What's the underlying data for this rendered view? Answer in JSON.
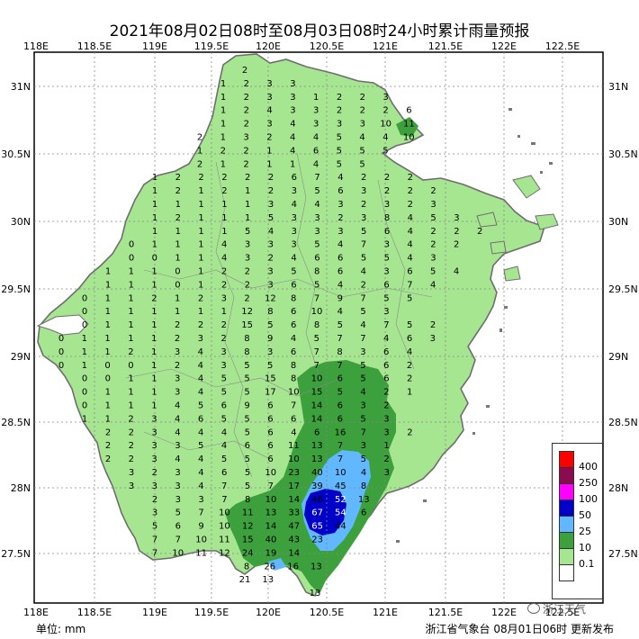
{
  "title": "2021年08月02日08时至08月03日08时24小时累计雨量预报",
  "x_ticks": [
    "118E",
    "118.5E",
    "119E",
    "119.5E",
    "120E",
    "120.5E",
    "121E",
    "121.5E",
    "122E",
    "122.5E"
  ],
  "y_ticks": [
    "31N",
    "30.5N",
    "30N",
    "29.5N",
    "29N",
    "28.5N",
    "28N",
    "27.5N"
  ],
  "unit_label": "单位: mm",
  "footer_text": "浙江省气象台 08月01日06时 更新发布",
  "watermark": "浙江天气",
  "legend": [
    {
      "label": "400",
      "color": "#ff0000"
    },
    {
      "label": "250",
      "color": "#8b0a50"
    },
    {
      "label": "100",
      "color": "#ff00ff"
    },
    {
      "label": "50",
      "color": "#0000c8"
    },
    {
      "label": "25",
      "color": "#61b8ff"
    },
    {
      "label": "10",
      "color": "#3ca03c"
    },
    {
      "label": "0.1",
      "color": "#a6e690"
    },
    {
      "label": "",
      "color": "#ffffff"
    }
  ],
  "colors": {
    "land": "#a6e690",
    "water": "#ffffff",
    "border": "#6e6e6e",
    "grid": "#888888"
  },
  "station_values": [
    [
      "2"
    ],
    [
      "1",
      "2",
      "3",
      "3"
    ],
    [
      "1",
      "2",
      "3",
      "3",
      "1",
      "2",
      "2",
      "3"
    ],
    [
      "1",
      "2",
      "4",
      "3",
      "3",
      "2",
      "2",
      "2",
      "6"
    ],
    [
      "1",
      "2",
      "3",
      "4",
      "3",
      "3",
      "3",
      "10",
      "11"
    ],
    [
      "2",
      "1",
      "3",
      "2",
      "4",
      "4",
      "5",
      "4",
      "4",
      "10"
    ],
    [
      "1",
      "2",
      "2",
      "1",
      "4",
      "6",
      "5",
      "5",
      "5"
    ],
    [
      "2",
      "1",
      "2",
      "1",
      "1",
      "4",
      "5",
      "5"
    ],
    [
      "1",
      "2",
      "2",
      "2",
      "2",
      "2",
      "6",
      "7",
      "4",
      "2",
      "2",
      "2"
    ],
    [
      "1",
      "2",
      "1",
      "2",
      "1",
      "2",
      "3",
      "5",
      "6",
      "3",
      "2",
      "2",
      "2"
    ],
    [
      "1",
      "1",
      "1",
      "1",
      "1",
      "3",
      "4",
      "4",
      "3",
      "2",
      "3",
      "2",
      "3"
    ],
    [
      "1",
      "2",
      "1",
      "1",
      "1",
      "5",
      "3",
      "3",
      "2",
      "3",
      "8",
      "4",
      "5",
      "3"
    ],
    [
      "1",
      "1",
      "1",
      "1",
      "5",
      "4",
      "3",
      "3",
      "3",
      "5",
      "6",
      "4",
      "2",
      "2",
      "2"
    ],
    [
      "0",
      "1",
      "1",
      "1",
      "4",
      "3",
      "3",
      "3",
      "5",
      "4",
      "7",
      "3",
      "4",
      "2",
      "2"
    ],
    [
      "0",
      "0",
      "1",
      "1",
      "4",
      "3",
      "2",
      "4",
      "6",
      "6",
      "5",
      "5",
      "4",
      "3"
    ],
    [
      "1",
      "1",
      "1",
      "0",
      "1",
      "2",
      "2",
      "3",
      "5",
      "8",
      "6",
      "4",
      "3",
      "6",
      "5",
      "4"
    ],
    [
      "1",
      "1",
      "1",
      "0",
      "1",
      "2",
      "2",
      "3",
      "6",
      "5",
      "4",
      "2",
      "6",
      "7",
      "4"
    ],
    [
      "0",
      "1",
      "1",
      "2",
      "1",
      "2",
      "3",
      "2",
      "12",
      "8",
      "7",
      "9",
      "7",
      "5",
      "5"
    ],
    [
      "0",
      "1",
      "1",
      "1",
      "1",
      "1",
      "1",
      "12",
      "8",
      "6",
      "10",
      "4",
      "5",
      "3"
    ],
    [
      "0",
      "1",
      "1",
      "1",
      "2",
      "2",
      "2",
      "15",
      "5",
      "6",
      "8",
      "5",
      "4",
      "7",
      "5",
      "2"
    ],
    [
      "0",
      "1",
      "1",
      "1",
      "1",
      "2",
      "3",
      "2",
      "8",
      "9",
      "4",
      "5",
      "7",
      "7",
      "4",
      "6",
      "3"
    ],
    [
      "0",
      "1",
      "1",
      "2",
      "1",
      "3",
      "4",
      "3",
      "8",
      "3",
      "6",
      "7",
      "8",
      "3",
      "6",
      "4"
    ],
    [
      "0",
      "1",
      "0",
      "0",
      "1",
      "2",
      "4",
      "3",
      "5",
      "5",
      "8",
      "7",
      "7",
      "5",
      "6",
      "2"
    ],
    [
      "0",
      "0",
      "1",
      "1",
      "3",
      "4",
      "5",
      "5",
      "15",
      "8",
      "10",
      "6",
      "5",
      "6",
      "2"
    ],
    [
      "0",
      "1",
      "1",
      "1",
      "3",
      "4",
      "5",
      "5",
      "17",
      "10",
      "15",
      "5",
      "4",
      "2",
      "1"
    ],
    [
      "0",
      "1",
      "1",
      "1",
      "4",
      "5",
      "6",
      "9",
      "6",
      "7",
      "14",
      "6",
      "3",
      "2"
    ],
    [
      "1",
      "1",
      "2",
      "3",
      "4",
      "6",
      "5",
      "5",
      "6",
      "6",
      "14",
      "6",
      "5",
      "3"
    ],
    [
      "2",
      "2",
      "3",
      "4",
      "4",
      "4",
      "5",
      "6",
      "4",
      "6",
      "16",
      "7",
      "3",
      "2"
    ],
    [
      "2",
      "2",
      "3",
      "3",
      "5",
      "4",
      "6",
      "6",
      "11",
      "13",
      "7",
      "3",
      "1"
    ],
    [
      "2",
      "2",
      "3",
      "4",
      "4",
      "5",
      "5",
      "6",
      "10",
      "13",
      "7",
      "5",
      "2"
    ],
    [
      "3",
      "2",
      "3",
      "4",
      "6",
      "5",
      "10",
      "23",
      "40",
      "10",
      "4",
      "3"
    ],
    [
      "3",
      "3",
      "3",
      "4",
      "7",
      "5",
      "7",
      "17",
      "39",
      "45",
      "8"
    ],
    [
      "2",
      "3",
      "3",
      "7",
      "8",
      "10",
      "14",
      "46",
      "52",
      "13"
    ],
    [
      "3",
      "5",
      "7",
      "10",
      "11",
      "13",
      "33",
      "67",
      "54",
      "6"
    ],
    [
      "5",
      "6",
      "9",
      "10",
      "12",
      "14",
      "47",
      "65",
      "44"
    ],
    [
      "7",
      "7",
      "10",
      "11",
      "15",
      "40",
      "43",
      "23"
    ],
    [
      "7",
      "10",
      "11",
      "12",
      "24",
      "19",
      "14"
    ],
    [
      "8",
      "26",
      "16",
      "13"
    ],
    [
      "21",
      "13"
    ],
    [
      "13"
    ]
  ]
}
